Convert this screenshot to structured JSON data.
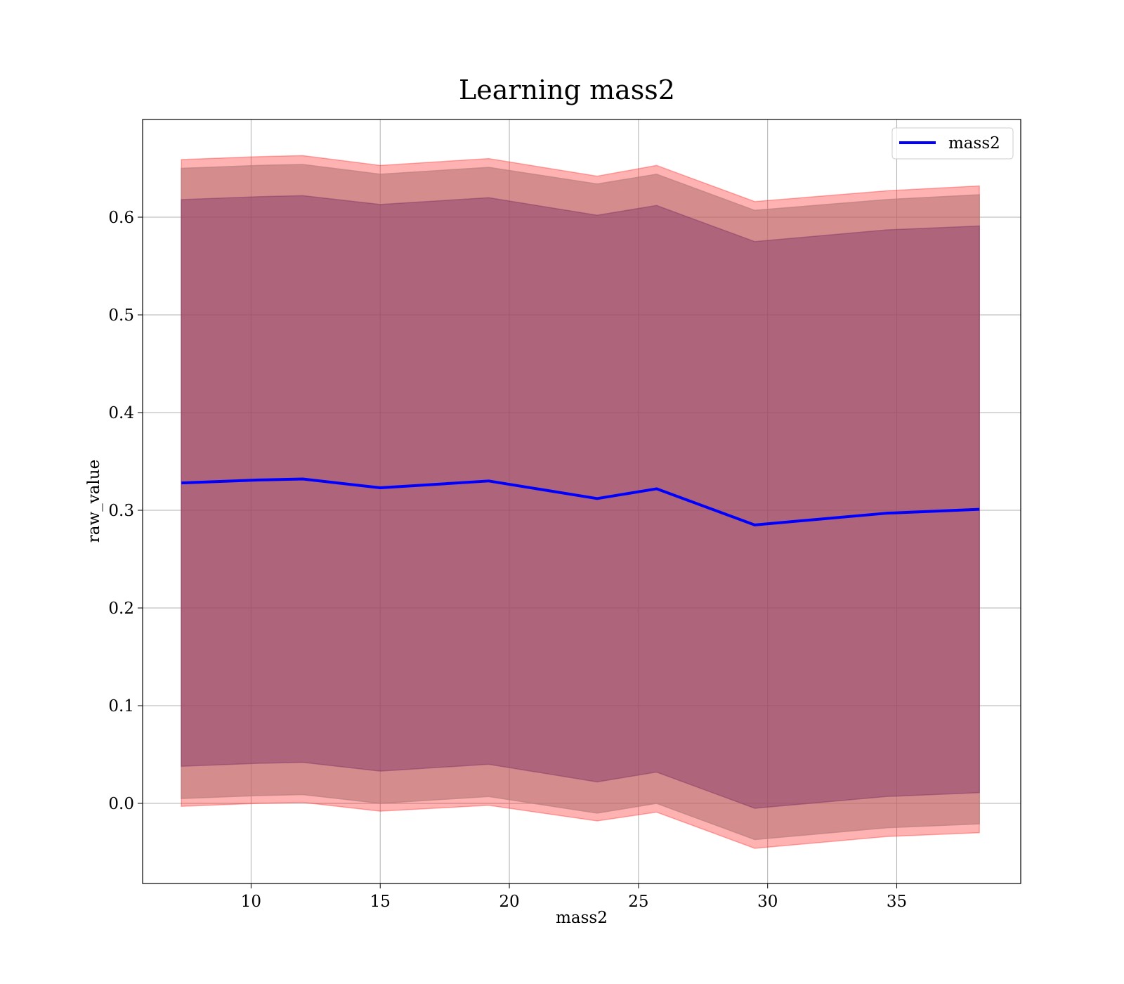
{
  "chart_data": {
    "type": "line",
    "title": "Learning mass2",
    "xlabel": "mass2",
    "ylabel": "raw_value",
    "xlim": [
      5.8,
      39.8
    ],
    "ylim": [
      -0.082,
      0.7
    ],
    "xticks": [
      "10",
      "15",
      "20",
      "25",
      "30",
      "35"
    ],
    "yticks": [
      "0.0",
      "0.1",
      "0.2",
      "0.3",
      "0.4",
      "0.5",
      "0.6"
    ],
    "grid": true,
    "legend": {
      "position": "top-right",
      "entries": [
        "mass2"
      ]
    },
    "x": [
      7.3,
      10.3,
      12.0,
      15.0,
      19.2,
      23.4,
      25.7,
      29.5,
      34.6,
      38.2
    ],
    "series": [
      {
        "name": "mass2",
        "color": "#0000ff",
        "values": [
          0.328,
          0.331,
          0.332,
          0.323,
          0.33,
          0.312,
          0.322,
          0.285,
          0.297,
          0.301
        ]
      }
    ],
    "bands": [
      {
        "color": "#ff0000",
        "opacity": 0.3,
        "upper": [
          0.659,
          0.662,
          0.663,
          0.653,
          0.66,
          0.642,
          0.653,
          0.616,
          0.627,
          0.632
        ],
        "lower": [
          -0.003,
          0.0,
          0.001,
          -0.008,
          -0.002,
          -0.018,
          -0.009,
          -0.046,
          -0.034,
          -0.03
        ]
      },
      {
        "color": "#ff0000",
        "opacity": 0.3,
        "upper": [
          0.65,
          0.653,
          0.654,
          0.644,
          0.651,
          0.634,
          0.644,
          0.607,
          0.618,
          0.623
        ],
        "lower": [
          0.005,
          0.008,
          0.009,
          0.0,
          0.007,
          -0.01,
          0.0,
          -0.037,
          -0.025,
          -0.021
        ]
      },
      {
        "color": "#a0a0a0",
        "opacity": 0.45,
        "upper": [
          0.65,
          0.653,
          0.654,
          0.644,
          0.651,
          0.634,
          0.644,
          0.607,
          0.618,
          0.623
        ],
        "lower": [
          0.005,
          0.008,
          0.009,
          0.0,
          0.007,
          -0.01,
          0.0,
          -0.037,
          -0.025,
          -0.021
        ]
      },
      {
        "color": "#803366",
        "opacity": 0.45,
        "upper": [
          0.618,
          0.621,
          0.622,
          0.613,
          0.62,
          0.602,
          0.612,
          0.575,
          0.587,
          0.591
        ],
        "lower": [
          0.038,
          0.041,
          0.042,
          0.033,
          0.04,
          0.022,
          0.032,
          -0.005,
          0.007,
          0.011
        ]
      }
    ]
  }
}
